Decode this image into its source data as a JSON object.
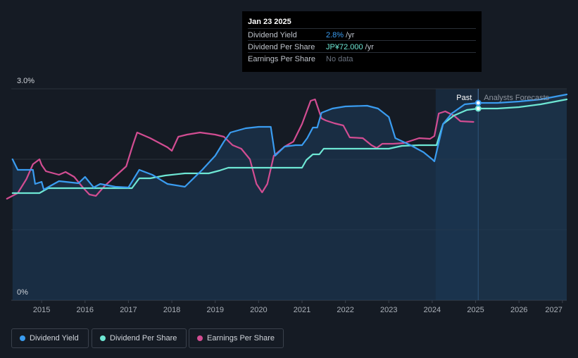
{
  "tooltip": {
    "date": "Jan 23 2025",
    "rows": [
      {
        "label": "Dividend Yield",
        "value": "2.8%",
        "unit": " /yr",
        "color": "#3a9cf0"
      },
      {
        "label": "Dividend Per Share",
        "value": "JP¥72.000",
        "unit": " /yr",
        "color": "#6ee7d4"
      },
      {
        "label": "Earnings Per Share",
        "value": "No data",
        "unit": "",
        "color": "#6b7380"
      }
    ]
  },
  "legend": [
    {
      "label": "Dividend Yield",
      "color": "#3a9cf0"
    },
    {
      "label": "Dividend Per Share",
      "color": "#6ee7d4"
    },
    {
      "label": "Earnings Per Share",
      "color": "#d24d92"
    }
  ],
  "chart_data": {
    "type": "line",
    "title": "",
    "xlabel": "",
    "ylabel": "",
    "ylim": [
      0,
      3.0
    ],
    "xlim": [
      2014.3,
      2027.1
    ],
    "y_tick_labels": [
      {
        "value": 3.0,
        "label": "3.0%"
      },
      {
        "value": 0,
        "label": "0%"
      }
    ],
    "gridlines": [
      1.0,
      2.0,
      3.0
    ],
    "x_tick_labels": [
      "2015",
      "2016",
      "2017",
      "2018",
      "2019",
      "2020",
      "2021",
      "2022",
      "2023",
      "2024",
      "2025",
      "2026",
      "2027"
    ],
    "past_label": "Past",
    "forecast_label": "Analysts Forecasts",
    "divider_x": 2025.06,
    "forecast_shade_start": 2024.08,
    "series": [
      {
        "name": "Dividend Yield",
        "color": "#3a9cf0",
        "points": [
          [
            2014.33,
            2.0
          ],
          [
            2014.45,
            1.85
          ],
          [
            2014.8,
            1.85
          ],
          [
            2014.85,
            1.65
          ],
          [
            2015.0,
            1.68
          ],
          [
            2015.05,
            1.57
          ],
          [
            2015.4,
            1.69
          ],
          [
            2015.85,
            1.66
          ],
          [
            2016.0,
            1.75
          ],
          [
            2016.2,
            1.6
          ],
          [
            2016.35,
            1.65
          ],
          [
            2016.7,
            1.61
          ],
          [
            2017.0,
            1.6
          ],
          [
            2017.25,
            1.85
          ],
          [
            2017.55,
            1.78
          ],
          [
            2017.9,
            1.65
          ],
          [
            2018.3,
            1.61
          ],
          [
            2018.7,
            1.85
          ],
          [
            2019.0,
            2.05
          ],
          [
            2019.2,
            2.25
          ],
          [
            2019.35,
            2.38
          ],
          [
            2019.7,
            2.44
          ],
          [
            2020.0,
            2.46
          ],
          [
            2020.28,
            2.46
          ],
          [
            2020.38,
            2.05
          ],
          [
            2020.6,
            2.18
          ],
          [
            2020.85,
            2.2
          ],
          [
            2021.0,
            2.2
          ],
          [
            2021.12,
            2.3
          ],
          [
            2021.25,
            2.45
          ],
          [
            2021.35,
            2.45
          ],
          [
            2021.45,
            2.66
          ],
          [
            2021.7,
            2.72
          ],
          [
            2022.0,
            2.75
          ],
          [
            2022.5,
            2.76
          ],
          [
            2022.75,
            2.72
          ],
          [
            2023.0,
            2.6
          ],
          [
            2023.15,
            2.3
          ],
          [
            2023.5,
            2.2
          ],
          [
            2023.8,
            2.1
          ],
          [
            2024.0,
            2.0
          ],
          [
            2024.05,
            1.97
          ],
          [
            2024.25,
            2.5
          ],
          [
            2024.45,
            2.65
          ],
          [
            2024.75,
            2.78
          ],
          [
            2025.06,
            2.8
          ],
          [
            2025.5,
            2.8
          ],
          [
            2026.0,
            2.82
          ],
          [
            2026.5,
            2.85
          ],
          [
            2027.1,
            2.92
          ]
        ],
        "marker": [
          2025.06,
          2.8
        ]
      },
      {
        "name": "Dividend Per Share",
        "color": "#6ee7d4",
        "points": [
          [
            2014.33,
            1.52
          ],
          [
            2014.95,
            1.52
          ],
          [
            2015.15,
            1.59
          ],
          [
            2015.5,
            1.59
          ],
          [
            2016.0,
            1.59
          ],
          [
            2017.08,
            1.59
          ],
          [
            2017.25,
            1.73
          ],
          [
            2017.5,
            1.73
          ],
          [
            2017.85,
            1.77
          ],
          [
            2018.3,
            1.8
          ],
          [
            2018.85,
            1.8
          ],
          [
            2019.1,
            1.84
          ],
          [
            2019.3,
            1.88
          ],
          [
            2020.0,
            1.88
          ],
          [
            2020.85,
            1.88
          ],
          [
            2021.0,
            1.88
          ],
          [
            2021.1,
            1.99
          ],
          [
            2021.25,
            2.07
          ],
          [
            2021.4,
            2.07
          ],
          [
            2021.5,
            2.15
          ],
          [
            2022.0,
            2.15
          ],
          [
            2022.5,
            2.15
          ],
          [
            2023.0,
            2.15
          ],
          [
            2023.3,
            2.19
          ],
          [
            2023.7,
            2.2
          ],
          [
            2024.0,
            2.2
          ],
          [
            2024.1,
            2.2
          ],
          [
            2024.25,
            2.5
          ],
          [
            2024.5,
            2.62
          ],
          [
            2024.8,
            2.7
          ],
          [
            2025.06,
            2.72
          ],
          [
            2025.5,
            2.72
          ],
          [
            2026.0,
            2.74
          ],
          [
            2026.5,
            2.78
          ],
          [
            2027.1,
            2.85
          ]
        ],
        "marker": [
          2025.06,
          2.72
        ]
      },
      {
        "name": "Earnings Per Share",
        "color": "#d24d92",
        "points": [
          [
            2014.2,
            1.44
          ],
          [
            2014.45,
            1.52
          ],
          [
            2014.65,
            1.72
          ],
          [
            2014.8,
            1.93
          ],
          [
            2014.95,
            2.0
          ],
          [
            2015.0,
            1.92
          ],
          [
            2015.1,
            1.83
          ],
          [
            2015.4,
            1.78
          ],
          [
            2015.55,
            1.82
          ],
          [
            2015.75,
            1.75
          ],
          [
            2015.95,
            1.6
          ],
          [
            2016.1,
            1.5
          ],
          [
            2016.25,
            1.48
          ],
          [
            2016.45,
            1.62
          ],
          [
            2016.7,
            1.76
          ],
          [
            2016.95,
            1.9
          ],
          [
            2017.1,
            2.2
          ],
          [
            2017.2,
            2.38
          ],
          [
            2017.5,
            2.3
          ],
          [
            2017.9,
            2.17
          ],
          [
            2018.0,
            2.12
          ],
          [
            2018.15,
            2.32
          ],
          [
            2018.35,
            2.35
          ],
          [
            2018.65,
            2.38
          ],
          [
            2019.0,
            2.35
          ],
          [
            2019.2,
            2.32
          ],
          [
            2019.4,
            2.2
          ],
          [
            2019.6,
            2.15
          ],
          [
            2019.8,
            2.0
          ],
          [
            2019.95,
            1.65
          ],
          [
            2020.08,
            1.53
          ],
          [
            2020.2,
            1.65
          ],
          [
            2020.35,
            2.05
          ],
          [
            2020.6,
            2.18
          ],
          [
            2020.8,
            2.25
          ],
          [
            2021.0,
            2.5
          ],
          [
            2021.2,
            2.83
          ],
          [
            2021.3,
            2.85
          ],
          [
            2021.45,
            2.58
          ],
          [
            2021.55,
            2.55
          ],
          [
            2021.75,
            2.51
          ],
          [
            2021.95,
            2.48
          ],
          [
            2022.1,
            2.31
          ],
          [
            2022.4,
            2.3
          ],
          [
            2022.6,
            2.2
          ],
          [
            2022.72,
            2.16
          ],
          [
            2022.85,
            2.22
          ],
          [
            2023.1,
            2.22
          ],
          [
            2023.35,
            2.23
          ],
          [
            2023.7,
            2.3
          ],
          [
            2023.95,
            2.29
          ],
          [
            2024.05,
            2.33
          ],
          [
            2024.15,
            2.65
          ],
          [
            2024.3,
            2.68
          ],
          [
            2024.5,
            2.62
          ],
          [
            2024.65,
            2.54
          ],
          [
            2024.95,
            2.53
          ]
        ],
        "marker": null
      }
    ]
  }
}
